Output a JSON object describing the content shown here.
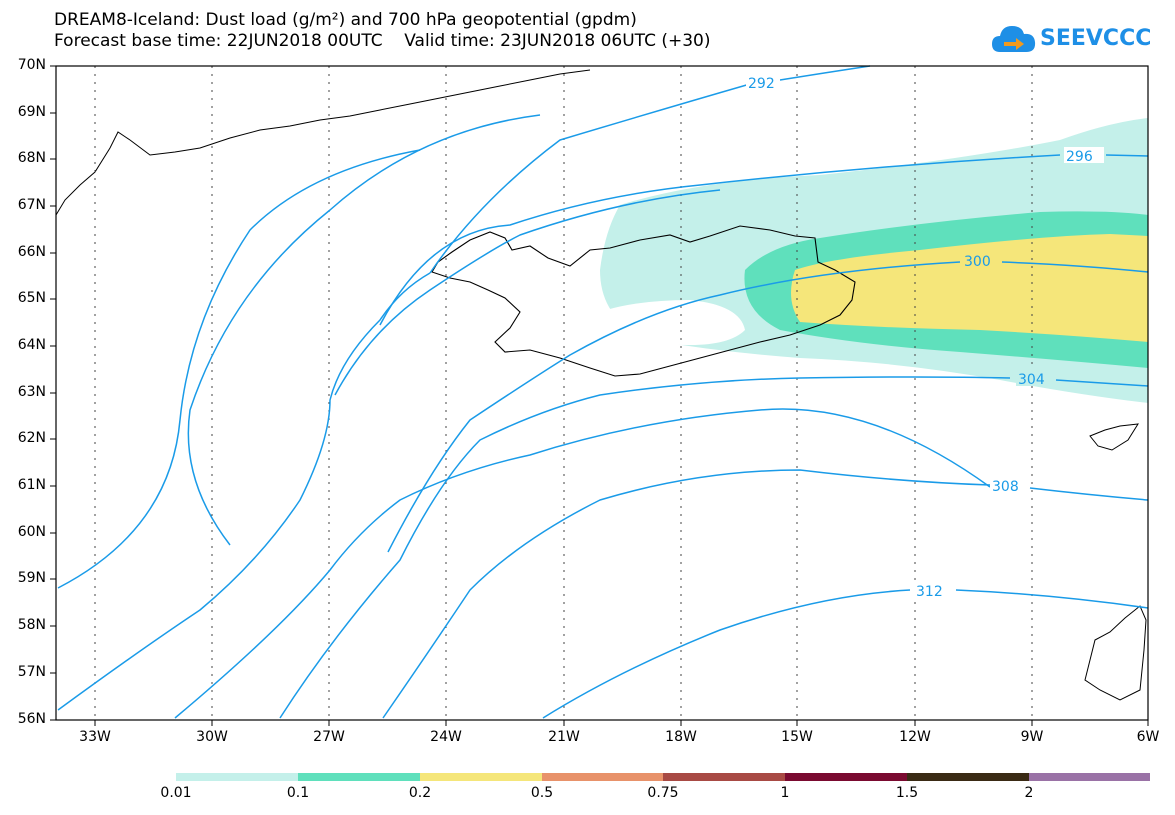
{
  "title": {
    "line1": "DREAM8-Iceland: Dust load (g/m²) and 700 hPa geopotential (gpdm)",
    "line2": "Forecast base time: 22JUN2018 00UTC    Valid time: 23JUN2018 06UTC (+30)"
  },
  "logo": {
    "text": "SEEVCCC",
    "color": "#1e8fe6"
  },
  "map": {
    "lat_labels": [
      "70N",
      "69N",
      "68N",
      "67N",
      "66N",
      "65N",
      "64N",
      "63N",
      "62N",
      "61N",
      "60N",
      "59N",
      "58N",
      "57N",
      "56N"
    ],
    "lon_labels": [
      "33W",
      "30W",
      "27W",
      "24W",
      "21W",
      "18W",
      "15W",
      "12W",
      "9W",
      "6W"
    ],
    "contour_color": "#1a9be8",
    "contour_labels": [
      "292",
      "296",
      "300",
      "304",
      "308",
      "312"
    ],
    "dust_fill_colors": {
      "low": "#c4f0ea",
      "mid": "#5fe0bc",
      "high": "#f5e67a"
    }
  },
  "colorbar": {
    "labels": [
      "0.01",
      "0.1",
      "0.2",
      "0.5",
      "0.75",
      "1",
      "1.5",
      "2"
    ],
    "colors": [
      "#c4f0ea",
      "#5fe0bc",
      "#f5e67a",
      "#e8926a",
      "#a84a44",
      "#7a0a30",
      "#3a2a14",
      "#9a72a6"
    ]
  }
}
